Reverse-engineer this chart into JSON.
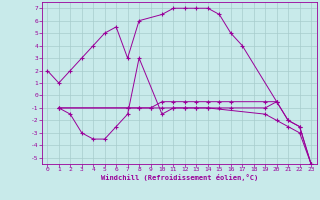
{
  "xlabel": "Windchill (Refroidissement éolien,°C)",
  "bg_color": "#c8eaea",
  "line_color": "#990099",
  "grid_color": "#a8cccc",
  "xlim": [
    -0.5,
    23.5
  ],
  "ylim": [
    -5.5,
    7.5
  ],
  "xticks": [
    0,
    1,
    2,
    3,
    4,
    5,
    6,
    7,
    8,
    9,
    10,
    11,
    12,
    13,
    14,
    15,
    16,
    17,
    18,
    19,
    20,
    21,
    22,
    23
  ],
  "yticks": [
    -5,
    -4,
    -3,
    -2,
    -1,
    0,
    1,
    2,
    3,
    4,
    5,
    6,
    7
  ],
  "series": [
    {
      "x": [
        0,
        1,
        2,
        3,
        4,
        5,
        6,
        7,
        8,
        10,
        11,
        12,
        13,
        14,
        15,
        16,
        17,
        20
      ],
      "y": [
        2,
        1,
        2,
        3,
        4,
        5,
        5.5,
        3,
        6,
        6.5,
        7,
        7,
        7,
        7,
        6.5,
        5,
        4,
        -0.5
      ]
    },
    {
      "x": [
        1,
        2,
        3,
        4,
        5,
        6,
        7,
        8,
        10,
        11,
        12,
        13,
        14,
        19,
        20,
        21,
        22,
        23
      ],
      "y": [
        -1,
        -1.5,
        -3,
        -3.5,
        -3.5,
        -2.5,
        -1.5,
        3,
        -1.5,
        -1,
        -1,
        -1,
        -1,
        -1.5,
        -2,
        -2.5,
        -3,
        -5.5
      ]
    },
    {
      "x": [
        1,
        7,
        8,
        9,
        10,
        11,
        12,
        13,
        14,
        15,
        16,
        19,
        20,
        21,
        22,
        23
      ],
      "y": [
        -1,
        -1,
        -1,
        -1,
        -0.5,
        -0.5,
        -0.5,
        -0.5,
        -0.5,
        -0.5,
        -0.5,
        -0.5,
        -0.5,
        -2,
        -2.5,
        -5.5
      ]
    },
    {
      "x": [
        1,
        7,
        8,
        9,
        10,
        11,
        12,
        13,
        14,
        15,
        16,
        19,
        20,
        21,
        22,
        23
      ],
      "y": [
        -1,
        -1,
        -1,
        -1,
        -1,
        -1,
        -1,
        -1,
        -1,
        -1,
        -1,
        -1,
        -0.5,
        -2,
        -2.5,
        -5.5
      ]
    }
  ]
}
